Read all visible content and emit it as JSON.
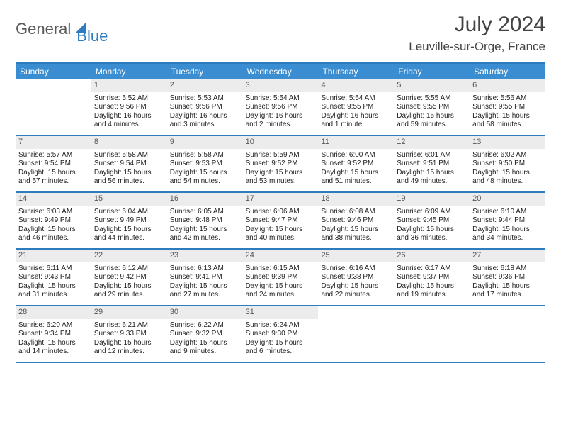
{
  "header": {
    "logo_left": "General",
    "logo_right": "Blue",
    "month_year": "July 2024",
    "location": "Leuville-sur-Orge, France"
  },
  "colors": {
    "header_bar": "#3a8dd0",
    "rule": "#2f7bbf",
    "daynum_bg": "#ececec",
    "logo_gray": "#5a5a5a",
    "logo_blue": "#2f7bbf"
  },
  "day_names": [
    "Sunday",
    "Monday",
    "Tuesday",
    "Wednesday",
    "Thursday",
    "Friday",
    "Saturday"
  ],
  "weeks": [
    [
      {
        "n": "",
        "lines": []
      },
      {
        "n": "1",
        "lines": [
          "Sunrise: 5:52 AM",
          "Sunset: 9:56 PM",
          "Daylight: 16 hours",
          "and 4 minutes."
        ]
      },
      {
        "n": "2",
        "lines": [
          "Sunrise: 5:53 AM",
          "Sunset: 9:56 PM",
          "Daylight: 16 hours",
          "and 3 minutes."
        ]
      },
      {
        "n": "3",
        "lines": [
          "Sunrise: 5:54 AM",
          "Sunset: 9:56 PM",
          "Daylight: 16 hours",
          "and 2 minutes."
        ]
      },
      {
        "n": "4",
        "lines": [
          "Sunrise: 5:54 AM",
          "Sunset: 9:55 PM",
          "Daylight: 16 hours",
          "and 1 minute."
        ]
      },
      {
        "n": "5",
        "lines": [
          "Sunrise: 5:55 AM",
          "Sunset: 9:55 PM",
          "Daylight: 15 hours",
          "and 59 minutes."
        ]
      },
      {
        "n": "6",
        "lines": [
          "Sunrise: 5:56 AM",
          "Sunset: 9:55 PM",
          "Daylight: 15 hours",
          "and 58 minutes."
        ]
      }
    ],
    [
      {
        "n": "7",
        "lines": [
          "Sunrise: 5:57 AM",
          "Sunset: 9:54 PM",
          "Daylight: 15 hours",
          "and 57 minutes."
        ]
      },
      {
        "n": "8",
        "lines": [
          "Sunrise: 5:58 AM",
          "Sunset: 9:54 PM",
          "Daylight: 15 hours",
          "and 56 minutes."
        ]
      },
      {
        "n": "9",
        "lines": [
          "Sunrise: 5:58 AM",
          "Sunset: 9:53 PM",
          "Daylight: 15 hours",
          "and 54 minutes."
        ]
      },
      {
        "n": "10",
        "lines": [
          "Sunrise: 5:59 AM",
          "Sunset: 9:52 PM",
          "Daylight: 15 hours",
          "and 53 minutes."
        ]
      },
      {
        "n": "11",
        "lines": [
          "Sunrise: 6:00 AM",
          "Sunset: 9:52 PM",
          "Daylight: 15 hours",
          "and 51 minutes."
        ]
      },
      {
        "n": "12",
        "lines": [
          "Sunrise: 6:01 AM",
          "Sunset: 9:51 PM",
          "Daylight: 15 hours",
          "and 49 minutes."
        ]
      },
      {
        "n": "13",
        "lines": [
          "Sunrise: 6:02 AM",
          "Sunset: 9:50 PM",
          "Daylight: 15 hours",
          "and 48 minutes."
        ]
      }
    ],
    [
      {
        "n": "14",
        "lines": [
          "Sunrise: 6:03 AM",
          "Sunset: 9:49 PM",
          "Daylight: 15 hours",
          "and 46 minutes."
        ]
      },
      {
        "n": "15",
        "lines": [
          "Sunrise: 6:04 AM",
          "Sunset: 9:49 PM",
          "Daylight: 15 hours",
          "and 44 minutes."
        ]
      },
      {
        "n": "16",
        "lines": [
          "Sunrise: 6:05 AM",
          "Sunset: 9:48 PM",
          "Daylight: 15 hours",
          "and 42 minutes."
        ]
      },
      {
        "n": "17",
        "lines": [
          "Sunrise: 6:06 AM",
          "Sunset: 9:47 PM",
          "Daylight: 15 hours",
          "and 40 minutes."
        ]
      },
      {
        "n": "18",
        "lines": [
          "Sunrise: 6:08 AM",
          "Sunset: 9:46 PM",
          "Daylight: 15 hours",
          "and 38 minutes."
        ]
      },
      {
        "n": "19",
        "lines": [
          "Sunrise: 6:09 AM",
          "Sunset: 9:45 PM",
          "Daylight: 15 hours",
          "and 36 minutes."
        ]
      },
      {
        "n": "20",
        "lines": [
          "Sunrise: 6:10 AM",
          "Sunset: 9:44 PM",
          "Daylight: 15 hours",
          "and 34 minutes."
        ]
      }
    ],
    [
      {
        "n": "21",
        "lines": [
          "Sunrise: 6:11 AM",
          "Sunset: 9:43 PM",
          "Daylight: 15 hours",
          "and 31 minutes."
        ]
      },
      {
        "n": "22",
        "lines": [
          "Sunrise: 6:12 AM",
          "Sunset: 9:42 PM",
          "Daylight: 15 hours",
          "and 29 minutes."
        ]
      },
      {
        "n": "23",
        "lines": [
          "Sunrise: 6:13 AM",
          "Sunset: 9:41 PM",
          "Daylight: 15 hours",
          "and 27 minutes."
        ]
      },
      {
        "n": "24",
        "lines": [
          "Sunrise: 6:15 AM",
          "Sunset: 9:39 PM",
          "Daylight: 15 hours",
          "and 24 minutes."
        ]
      },
      {
        "n": "25",
        "lines": [
          "Sunrise: 6:16 AM",
          "Sunset: 9:38 PM",
          "Daylight: 15 hours",
          "and 22 minutes."
        ]
      },
      {
        "n": "26",
        "lines": [
          "Sunrise: 6:17 AM",
          "Sunset: 9:37 PM",
          "Daylight: 15 hours",
          "and 19 minutes."
        ]
      },
      {
        "n": "27",
        "lines": [
          "Sunrise: 6:18 AM",
          "Sunset: 9:36 PM",
          "Daylight: 15 hours",
          "and 17 minutes."
        ]
      }
    ],
    [
      {
        "n": "28",
        "lines": [
          "Sunrise: 6:20 AM",
          "Sunset: 9:34 PM",
          "Daylight: 15 hours",
          "and 14 minutes."
        ]
      },
      {
        "n": "29",
        "lines": [
          "Sunrise: 6:21 AM",
          "Sunset: 9:33 PM",
          "Daylight: 15 hours",
          "and 12 minutes."
        ]
      },
      {
        "n": "30",
        "lines": [
          "Sunrise: 6:22 AM",
          "Sunset: 9:32 PM",
          "Daylight: 15 hours",
          "and 9 minutes."
        ]
      },
      {
        "n": "31",
        "lines": [
          "Sunrise: 6:24 AM",
          "Sunset: 9:30 PM",
          "Daylight: 15 hours",
          "and 6 minutes."
        ]
      },
      {
        "n": "",
        "lines": []
      },
      {
        "n": "",
        "lines": []
      },
      {
        "n": "",
        "lines": []
      }
    ]
  ]
}
